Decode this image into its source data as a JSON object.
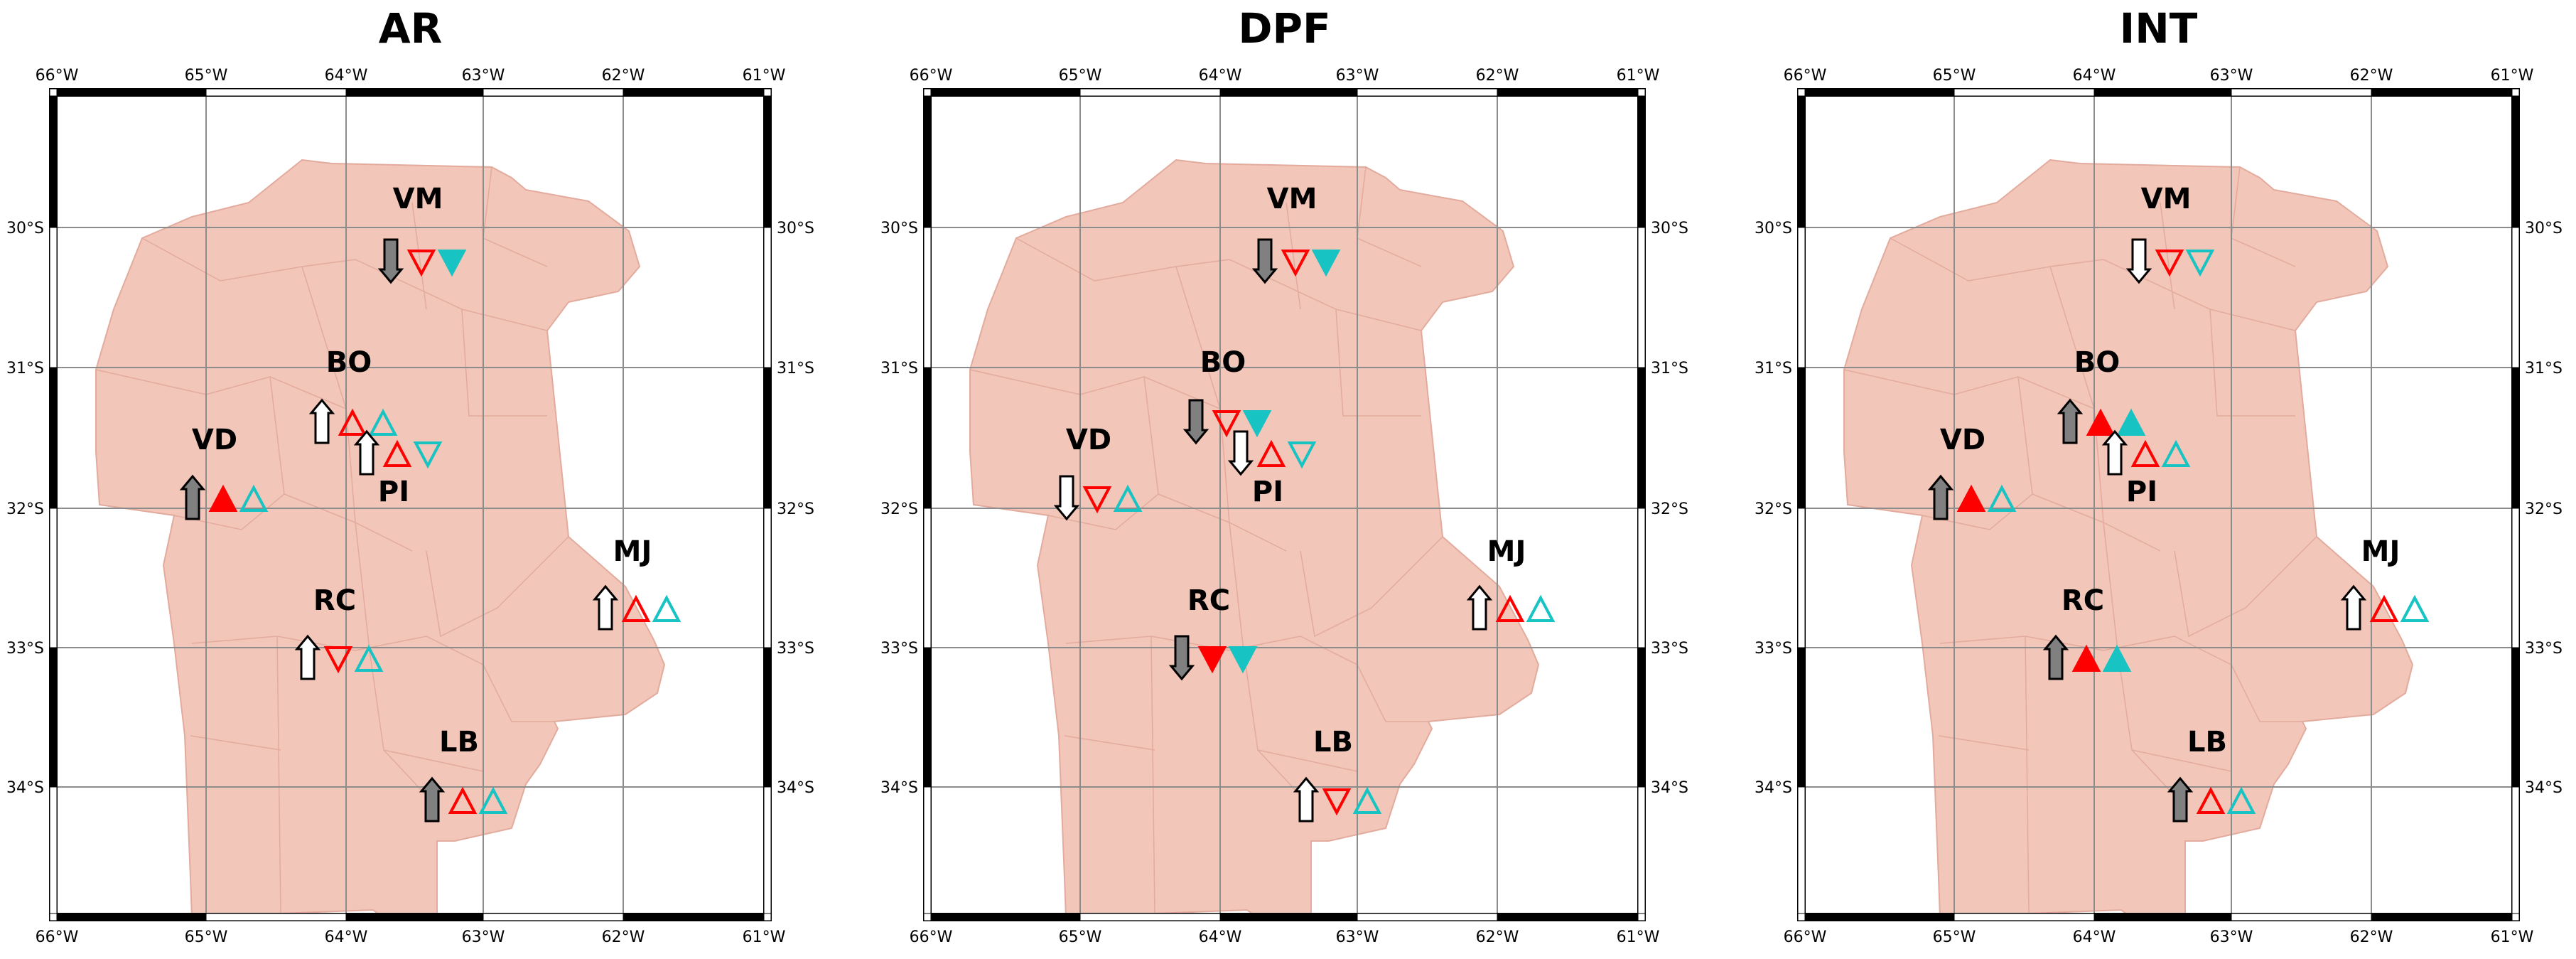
{
  "panels": [
    {
      "title": "AR",
      "stations": [
        {
          "code": "VM",
          "arrow": "down",
          "arrow_filled": true,
          "red": "down",
          "red_filled": false,
          "cyan": "down",
          "cyan_filled": true
        },
        {
          "code": "BO",
          "arrow": "up",
          "arrow_filled": false,
          "red": "up",
          "red_filled": false,
          "cyan": "up",
          "cyan_filled": false
        },
        {
          "code": "PI",
          "arrow": "up",
          "arrow_filled": false,
          "red": "up",
          "red_filled": false,
          "cyan": "down",
          "cyan_filled": false
        },
        {
          "code": "VD",
          "arrow": "up",
          "arrow_filled": true,
          "red": "up",
          "red_filled": true,
          "cyan": "up",
          "cyan_filled": false
        },
        {
          "code": "MJ",
          "arrow": "up",
          "arrow_filled": false,
          "red": "up",
          "red_filled": false,
          "cyan": "up",
          "cyan_filled": false
        },
        {
          "code": "RC",
          "arrow": "up",
          "arrow_filled": false,
          "red": "down",
          "red_filled": false,
          "cyan": "up",
          "cyan_filled": false
        },
        {
          "code": "LB",
          "arrow": "up",
          "arrow_filled": true,
          "red": "up",
          "red_filled": false,
          "cyan": "up",
          "cyan_filled": false
        }
      ]
    },
    {
      "title": "DPF",
      "stations": [
        {
          "code": "VM",
          "arrow": "down",
          "arrow_filled": true,
          "red": "down",
          "red_filled": false,
          "cyan": "down",
          "cyan_filled": true
        },
        {
          "code": "BO",
          "arrow": "down",
          "arrow_filled": true,
          "red": "down",
          "red_filled": false,
          "cyan": "down",
          "cyan_filled": true
        },
        {
          "code": "PI",
          "arrow": "down",
          "arrow_filled": false,
          "red": "up",
          "red_filled": false,
          "cyan": "down",
          "cyan_filled": false
        },
        {
          "code": "VD",
          "arrow": "down",
          "arrow_filled": false,
          "red": "down",
          "red_filled": false,
          "cyan": "up",
          "cyan_filled": false
        },
        {
          "code": "MJ",
          "arrow": "up",
          "arrow_filled": false,
          "red": "up",
          "red_filled": false,
          "cyan": "up",
          "cyan_filled": false
        },
        {
          "code": "RC",
          "arrow": "down",
          "arrow_filled": true,
          "red": "down",
          "red_filled": true,
          "cyan": "down",
          "cyan_filled": true
        },
        {
          "code": "LB",
          "arrow": "up",
          "arrow_filled": false,
          "red": "down",
          "red_filled": false,
          "cyan": "up",
          "cyan_filled": false
        }
      ]
    },
    {
      "title": "INT",
      "stations": [
        {
          "code": "VM",
          "arrow": "down",
          "arrow_filled": false,
          "red": "down",
          "red_filled": false,
          "cyan": "down",
          "cyan_filled": false
        },
        {
          "code": "BO",
          "arrow": "up",
          "arrow_filled": true,
          "red": "up",
          "red_filled": true,
          "cyan": "up",
          "cyan_filled": true
        },
        {
          "code": "PI",
          "arrow": "up",
          "arrow_filled": false,
          "red": "up",
          "red_filled": false,
          "cyan": "up",
          "cyan_filled": false
        },
        {
          "code": "VD",
          "arrow": "up",
          "arrow_filled": true,
          "red": "up",
          "red_filled": true,
          "cyan": "up",
          "cyan_filled": false
        },
        {
          "code": "MJ",
          "arrow": "up",
          "arrow_filled": false,
          "red": "up",
          "red_filled": false,
          "cyan": "up",
          "cyan_filled": false
        },
        {
          "code": "RC",
          "arrow": "up",
          "arrow_filled": true,
          "red": "up",
          "red_filled": true,
          "cyan": "up",
          "cyan_filled": true
        },
        {
          "code": "LB",
          "arrow": "up",
          "arrow_filled": true,
          "red": "up",
          "red_filled": false,
          "cyan": "up",
          "cyan_filled": false
        }
      ]
    }
  ],
  "longitude_labels": [
    "66°W",
    "65°W",
    "64°W",
    "63°W",
    "62°W",
    "61°W"
  ],
  "latitude_labels": [
    "30°S",
    "31°S",
    "32°S",
    "33°S",
    "34°S"
  ],
  "colors": {
    "land": "#f2c6b8",
    "land_border": "#e2ab9d",
    "grid": "#8c8c8c",
    "red_marker": "#ff0000",
    "cyan_marker": "#18c3c3",
    "arrow_fill": "#808080",
    "frame": "#000000"
  }
}
